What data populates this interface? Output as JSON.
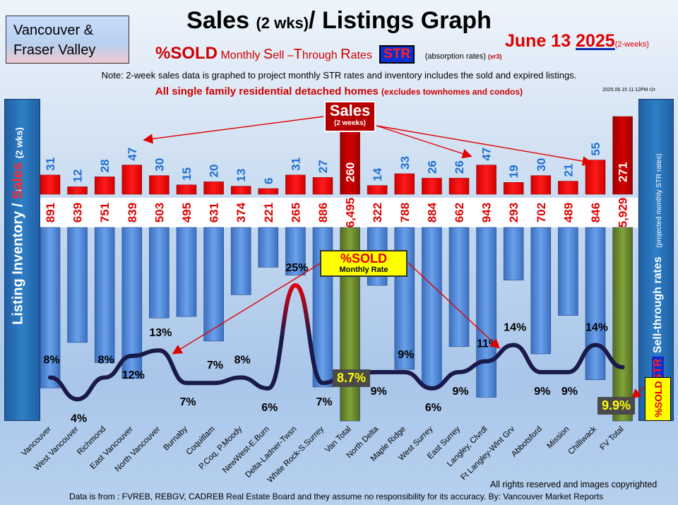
{
  "header": {
    "region_line1": "Vancouver &",
    "region_line2": "Fraser Valley",
    "title_main": "Sales",
    "title_small": "(2 wks)",
    "title_rest": "/ Listings Graph",
    "date_prefix": "June 13",
    "date_year": "2025",
    "date_suffix": "(2-weeks)",
    "subtitle_big": "%SOLD",
    "subtitle_words": [
      "Monthly ",
      "S",
      "ell –",
      "T",
      "hrough ",
      "R",
      "ates"
    ],
    "subtitle_str": "STR",
    "subtitle_abs": "(absorption rates)",
    "subtitle_ver": "(vr3)",
    "note": "Note: 2-week sales data is graphed to project monthly STR rates and inventory includes the sold and expired listings.",
    "note2_main": "All single family residential detached homes",
    "note2_small": "(excludes townhomes and condos)",
    "timestamp": "2025.06.15 11:12PM r2r"
  },
  "side_labels": {
    "left_a": "Listing Inventory / ",
    "left_b": "Sales",
    "left_c": "(2 wks)",
    "right_a": "Sell-through rates",
    "right_b": "(projected monthly STR rates)",
    "right_str": "STR",
    "right_sold": "%SOLD"
  },
  "callouts": {
    "sales_title": "Sales",
    "sales_sub": "(2 weeks)",
    "sold_title": "%SOLD",
    "sold_sub": "Monthly Rate",
    "van_total_badge": "8.7%",
    "fv_total_badge": "9.9%"
  },
  "footer": {
    "source": "Data is from : FVREB, REBGV, CADREB Real Estate Board and they assume no responsibility for its accuracy. By: Vancouver Market Reports",
    "rights": "All rights reserved and  images copyrighted"
  },
  "colors": {
    "listing_bar": "#4a86d4",
    "sales_bar": "#ff0000",
    "total_bar": "#6b8e23",
    "str_line": "#1a1a4a",
    "sales_label": "#1f6fd1",
    "listing_label": "#e00000"
  },
  "chart_data": {
    "type": "bar",
    "categories": [
      "Vancouver",
      "West Vancouver",
      "Richmond",
      "East Vancouver",
      "North Vancouver",
      "Burnaby",
      "Coquitlam",
      "P.Coq, P.Moody",
      "NewWest-E.Burn",
      "Delta-Ladner-Twsn",
      "White Rock-S.Surrey",
      "Van Total",
      "North Delta",
      "Maple Ridge",
      "West Surrey",
      "East Surrey",
      "Langley, Clvrdl",
      "Ft Langley-Wlnt Grv",
      "Abbotsford",
      "Mission",
      "Chilliwack",
      "FV Total"
    ],
    "series": [
      {
        "name": "Sales",
        "values": [
          31,
          12,
          28,
          47,
          30,
          15,
          20,
          13,
          6,
          31,
          27,
          260,
          14,
          33,
          26,
          26,
          47,
          19,
          30,
          21,
          55,
          271
        ]
      },
      {
        "name": "Listing Inventory",
        "labels": [
          "891",
          "639",
          "751",
          "839",
          "503",
          "495",
          "631",
          "374",
          "221",
          "265",
          "886",
          "6,495",
          "322",
          "788",
          "884",
          "662",
          "943",
          "293",
          "702",
          "489",
          "846",
          "5,929"
        ],
        "values": [
          891,
          639,
          751,
          839,
          503,
          495,
          631,
          374,
          221,
          265,
          886,
          6495,
          322,
          788,
          884,
          662,
          943,
          293,
          702,
          489,
          846,
          5929
        ]
      },
      {
        "name": "%SOLD",
        "labels": [
          "8%",
          "4%",
          "8%",
          "12%",
          "13%",
          "7%",
          "7%",
          "8%",
          "6%",
          "25%",
          "7%",
          "8.7%",
          "9%",
          "9%",
          "6%",
          "9%",
          "11%",
          "14%",
          "9%",
          "9%",
          "14%",
          "9.9%"
        ],
        "values": [
          8,
          4,
          8,
          12,
          13,
          7,
          7,
          8,
          6,
          25,
          7,
          8.7,
          9,
          9,
          6,
          9,
          11,
          14,
          9,
          9,
          14,
          9.9
        ]
      }
    ],
    "totals": [
      "Van Total",
      "FV Total"
    ],
    "xlabel": "",
    "ylabel": "Listing Inventory / Sales (2 wks)"
  }
}
